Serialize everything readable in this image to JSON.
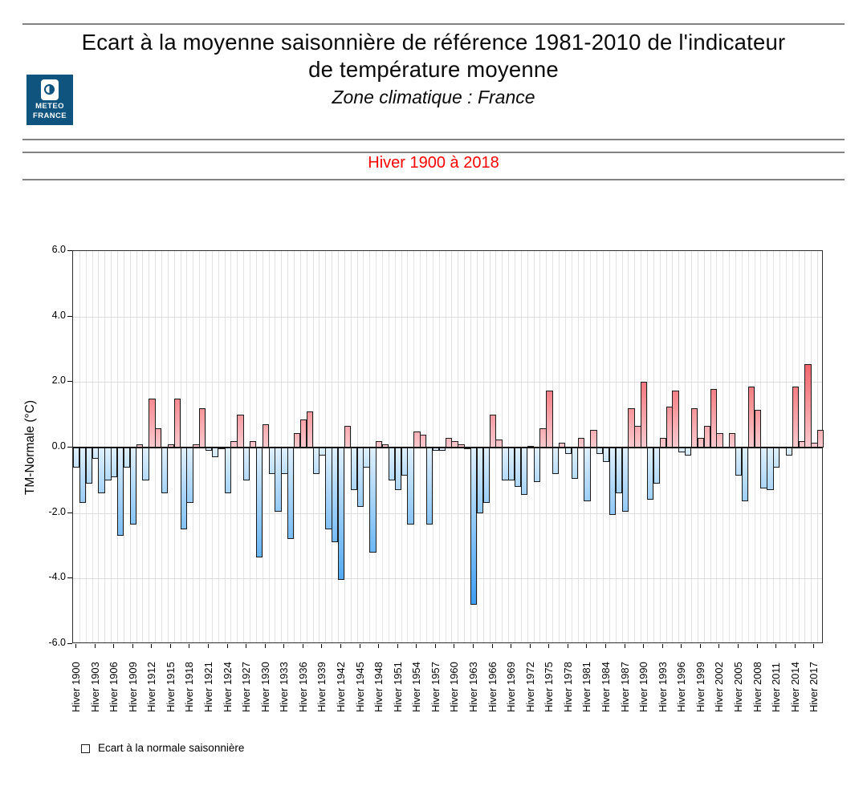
{
  "header": {
    "title_line1": "Ecart à la moyenne saisonnière de référence 1981-2010 de l'indicateur",
    "title_line2": "de température moyenne",
    "subtitle": "Zone climatique : France",
    "logo": {
      "line1": "METEO",
      "line2": "FRANCE",
      "bg_color": "#0f537f"
    }
  },
  "banner": {
    "text": "Hiver 1900 à 2018",
    "color": "#fa0000"
  },
  "legend": {
    "label": "Ecart à la normale saisonnière"
  },
  "chart_data": {
    "type": "bar",
    "title": "Ecart à la moyenne saisonnière de référence 1981-2010 de l'indicateur de température moyenne",
    "xlabel": "",
    "ylabel": "TM-Normale (°C)",
    "ylim": [
      -6.0,
      6.0
    ],
    "yticks": [
      6.0,
      4.0,
      2.0,
      0.0,
      -2.0,
      -4.0,
      -6.0
    ],
    "grid": true,
    "x_tick_prefix": "Hiver ",
    "x_start_year": 1900,
    "x_end_year": 2018,
    "x_label_step": 3,
    "values": [
      -0.6,
      -1.7,
      -1.1,
      -0.35,
      -1.4,
      -1.0,
      -0.9,
      -2.7,
      -0.6,
      -2.35,
      0.1,
      -1.0,
      1.5,
      0.6,
      -1.4,
      0.1,
      1.5,
      -2.5,
      -1.7,
      0.1,
      1.2,
      -0.1,
      -0.3,
      -0.05,
      -1.4,
      0.2,
      1.0,
      -1.0,
      0.2,
      -3.35,
      0.7,
      -0.8,
      -1.95,
      -0.8,
      -2.8,
      0.45,
      0.85,
      1.1,
      -0.8,
      -0.25,
      -2.5,
      -2.9,
      -4.05,
      0.65,
      -1.3,
      -1.8,
      -0.6,
      -3.2,
      0.2,
      0.1,
      -1.0,
      -1.3,
      -0.85,
      -2.35,
      0.5,
      0.4,
      -2.35,
      -0.1,
      -0.1,
      0.3,
      0.2,
      0.1,
      -0.05,
      -4.8,
      -2.0,
      -1.7,
      1.0,
      0.25,
      -1.0,
      -1.0,
      -1.2,
      -1.45,
      0.05,
      -1.05,
      0.6,
      1.75,
      -0.8,
      0.15,
      -0.2,
      -0.95,
      0.3,
      -1.65,
      0.55,
      -0.2,
      -0.45,
      -2.05,
      -1.4,
      -1.95,
      1.2,
      0.65,
      2.0,
      -1.6,
      -1.1,
      0.3,
      1.25,
      1.75,
      -0.15,
      -0.25,
      1.2,
      0.3,
      0.65,
      1.8,
      0.45,
      0.0,
      0.45,
      -0.85,
      -1.65,
      1.85,
      1.15,
      -1.25,
      -1.3,
      -0.6,
      0.0,
      -0.25,
      1.85,
      0.2,
      2.55,
      0.15,
      0.55
    ],
    "colors": {
      "positive_light": "#fbc9ce",
      "positive_deep": "#f1666c",
      "negative_light": "#dff0fd",
      "negative_deep": "#3d9ff2",
      "zero_line": "#000000",
      "gridline": "#e2e2e2"
    },
    "legend_entries": [
      "Ecart à la normale saisonnière"
    ],
    "legend_position": "bottom-left"
  }
}
